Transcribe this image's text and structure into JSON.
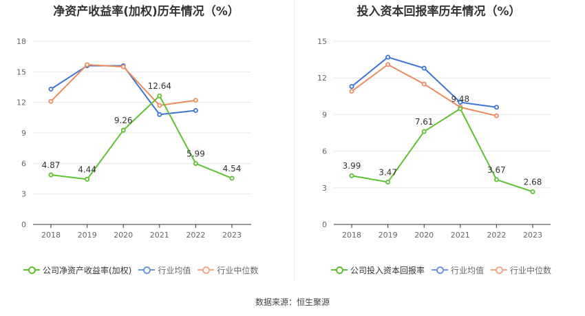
{
  "source": "数据来源：恒生聚源",
  "chart_data": [
    {
      "type": "line",
      "title": "净资产收益率(加权)历年情况（%）",
      "x": [
        "2018",
        "2019",
        "2020",
        "2021",
        "2022",
        "2023"
      ],
      "yticks": [
        "0",
        "3",
        "6",
        "9",
        "12",
        "15",
        "18"
      ],
      "ylim": [
        0,
        18
      ],
      "grid": true,
      "legend_position": "bottom",
      "series": [
        {
          "name": "公司净资产收益率(加权)",
          "color": "#5cc12e",
          "values": [
            4.87,
            4.44,
            9.26,
            12.64,
            5.99,
            4.54
          ],
          "labels": [
            "4.87",
            "4.44",
            "9.26",
            "12.64",
            "5.99",
            "4.54"
          ]
        },
        {
          "name": "行业均值",
          "color": "#3b73d9",
          "values": [
            13.3,
            15.6,
            15.6,
            10.8,
            11.2,
            null
          ]
        },
        {
          "name": "行业中位数",
          "color": "#f08a5d",
          "values": [
            12.1,
            15.7,
            15.5,
            11.7,
            12.2,
            null
          ]
        }
      ]
    },
    {
      "type": "line",
      "title": "投入资本回报率历年情况（%）",
      "x": [
        "2018",
        "2019",
        "2020",
        "2021",
        "2022",
        "2023"
      ],
      "yticks": [
        "0",
        "3",
        "6",
        "9",
        "12",
        "15"
      ],
      "ylim": [
        0,
        15
      ],
      "grid": true,
      "legend_position": "bottom",
      "series": [
        {
          "name": "公司投入资本回报率",
          "color": "#5cc12e",
          "values": [
            3.99,
            3.47,
            7.61,
            9.48,
            3.67,
            2.68
          ],
          "labels": [
            "3.99",
            "3.47",
            "7.61",
            "9.48",
            "3.67",
            "2.68"
          ]
        },
        {
          "name": "行业均值",
          "color": "#3b73d9",
          "values": [
            11.3,
            13.7,
            12.8,
            10.0,
            9.6,
            null
          ]
        },
        {
          "name": "行业中位数",
          "color": "#f08a5d",
          "values": [
            10.9,
            13.1,
            11.5,
            9.6,
            8.9,
            null
          ]
        }
      ]
    }
  ]
}
